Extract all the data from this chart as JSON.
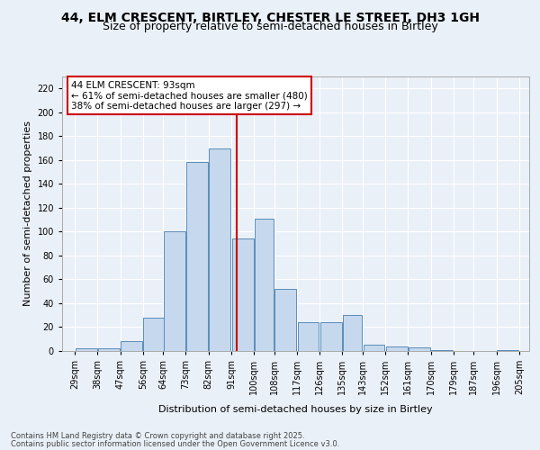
{
  "title_line1": "44, ELM CRESCENT, BIRTLEY, CHESTER LE STREET, DH3 1GH",
  "title_line2": "Size of property relative to semi-detached houses in Birtley",
  "xlabel": "Distribution of semi-detached houses by size in Birtley",
  "ylabel": "Number of semi-detached properties",
  "annotation_title": "44 ELM CRESCENT: 93sqm",
  "annotation_line2": "← 61% of semi-detached houses are smaller (480)",
  "annotation_line3": "38% of semi-detached houses are larger (297) →",
  "footer_line1": "Contains HM Land Registry data © Crown copyright and database right 2025.",
  "footer_line2": "Contains public sector information licensed under the Open Government Licence v3.0.",
  "property_size": 93,
  "bar_left_edges": [
    29,
    38,
    47,
    56,
    64,
    73,
    82,
    91,
    100,
    108,
    117,
    126,
    135,
    143,
    152,
    161,
    170,
    179,
    187,
    196
  ],
  "bar_widths": [
    9,
    9,
    9,
    9,
    9,
    9,
    9,
    9,
    8,
    9,
    9,
    9,
    8,
    9,
    9,
    9,
    9,
    8,
    9,
    9
  ],
  "bar_heights": [
    2,
    2,
    8,
    28,
    100,
    158,
    170,
    94,
    111,
    52,
    24,
    24,
    30,
    5,
    4,
    3,
    1,
    0,
    0,
    1
  ],
  "tick_labels": [
    "29sqm",
    "38sqm",
    "47sqm",
    "56sqm",
    "64sqm",
    "73sqm",
    "82sqm",
    "91sqm",
    "100sqm",
    "108sqm",
    "117sqm",
    "126sqm",
    "135sqm",
    "143sqm",
    "152sqm",
    "161sqm",
    "170sqm",
    "179sqm",
    "187sqm",
    "196sqm",
    "205sqm"
  ],
  "tick_positions": [
    29,
    38,
    47,
    56,
    64,
    73,
    82,
    91,
    100,
    108,
    117,
    126,
    135,
    143,
    152,
    161,
    170,
    179,
    187,
    196,
    205
  ],
  "ylim": [
    0,
    230
  ],
  "yticks": [
    0,
    20,
    40,
    60,
    80,
    100,
    120,
    140,
    160,
    180,
    200,
    220
  ],
  "bar_color": "#c5d8ed",
  "bar_edge_color": "#5b8db8",
  "vline_x": 93,
  "vline_color": "#cc0000",
  "annotation_box_color": "#cc0000",
  "bg_color": "#eaf0f8",
  "grid_color": "#ffffff",
  "title_fontsize": 10,
  "subtitle_fontsize": 9,
  "axis_label_fontsize": 8,
  "tick_fontsize": 7,
  "annotation_fontsize": 7.5
}
